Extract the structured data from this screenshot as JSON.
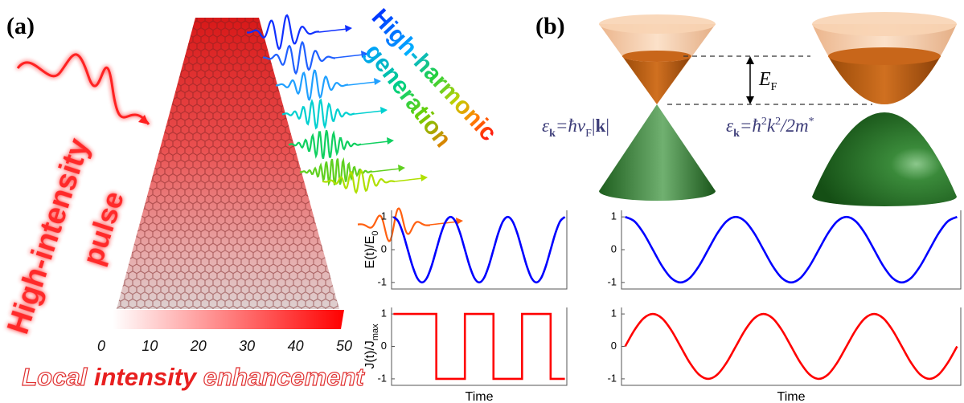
{
  "panel_a": {
    "label": "(a)",
    "pulse_label": [
      "High-intensity",
      "pulse"
    ],
    "hhg_label": [
      "High-harmonic",
      "generation"
    ],
    "colorbar": {
      "lim": [
        0,
        50
      ],
      "ticks": [
        0,
        10,
        20,
        30,
        40,
        50
      ],
      "title": [
        "Local",
        "intensity",
        "enhancement"
      ]
    }
  },
  "panel_b": {
    "label": "(b)",
    "fermi_energy": [
      "E",
      "F"
    ],
    "dirac_dispersion": [
      "ε",
      "k",
      "=ħv",
      "F",
      "|",
      "k",
      "|"
    ],
    "parabolic_dispersion": [
      "ε",
      "k",
      "=ħ",
      "2",
      "k",
      "2",
      "/2m",
      "*"
    ]
  },
  "chart_data": [
    {
      "type": "line",
      "curve": "smooth",
      "ylabel": [
        "E(t)/E",
        "0"
      ],
      "x": [
        0,
        1,
        2,
        3,
        4,
        5,
        6,
        7,
        8,
        9,
        10,
        11,
        12,
        13,
        14,
        15,
        16,
        17,
        18,
        19,
        20,
        21,
        22,
        23,
        24,
        25,
        26,
        27,
        28,
        29,
        30,
        31,
        32,
        33,
        34,
        35,
        36
      ],
      "series": [
        {
          "color": "#0000ff",
          "values": [
            1,
            0.866,
            0.5,
            0,
            -0.5,
            -0.866,
            -1,
            -0.866,
            -0.5,
            0,
            0.5,
            0.866,
            1,
            0.866,
            0.5,
            0,
            -0.5,
            -0.866,
            -1,
            -0.866,
            -0.5,
            0,
            0.5,
            0.866,
            1,
            0.866,
            0.5,
            0,
            -0.5,
            -0.866,
            -1,
            -0.866,
            -0.5,
            0,
            0.5,
            0.866,
            1
          ]
        }
      ],
      "xlim": [
        -0.4,
        36.4
      ],
      "ylim": [
        -1.2,
        1.2
      ],
      "yticks": [
        -1,
        0,
        1
      ]
    },
    {
      "type": "line",
      "curve": "smooth",
      "x": [
        0,
        1,
        2,
        3,
        4,
        5,
        6,
        7,
        8,
        9,
        10,
        11,
        12,
        13,
        14,
        15,
        16,
        17,
        18,
        19,
        20,
        21,
        22,
        23,
        24,
        25,
        26,
        27,
        28,
        29,
        30,
        31,
        32,
        33,
        34,
        35,
        36
      ],
      "series": [
        {
          "color": "#0000ff",
          "values": [
            1,
            0.866,
            0.5,
            0,
            -0.5,
            -0.866,
            -1,
            -0.866,
            -0.5,
            0,
            0.5,
            0.866,
            1,
            0.866,
            0.5,
            0,
            -0.5,
            -0.866,
            -1,
            -0.866,
            -0.5,
            0,
            0.5,
            0.866,
            1,
            0.866,
            0.5,
            0,
            -0.5,
            -0.866,
            -1,
            -0.866,
            -0.5,
            0,
            0.5,
            0.866,
            1
          ]
        }
      ],
      "xlim": [
        -0.4,
        36.4
      ],
      "ylim": [
        -1.2,
        1.2
      ],
      "yticks": [
        -1,
        0,
        1
      ]
    },
    {
      "type": "line",
      "curve": "linear",
      "ylabel": [
        "J(t)/J",
        "max"
      ],
      "xlabel": "Time",
      "x": [
        0,
        9,
        9,
        15,
        15,
        21,
        21,
        27,
        27,
        33,
        33,
        36
      ],
      "series": [
        {
          "color": "#ff0000",
          "values": [
            1,
            1,
            -1,
            -1,
            1,
            1,
            -1,
            -1,
            1,
            1,
            -1,
            -1
          ]
        }
      ],
      "xlim": [
        -0.4,
        36.4
      ],
      "ylim": [
        -1.2,
        1.2
      ],
      "yticks": [
        -1,
        0,
        1
      ]
    },
    {
      "type": "line",
      "curve": "smooth",
      "xlabel": "Time",
      "x": [
        0,
        1,
        2,
        3,
        4,
        5,
        6,
        7,
        8,
        9,
        10,
        11,
        12,
        13,
        14,
        15,
        16,
        17,
        18,
        19,
        20,
        21,
        22,
        23,
        24,
        25,
        26,
        27,
        28,
        29,
        30,
        31,
        32,
        33,
        34,
        35,
        36
      ],
      "series": [
        {
          "color": "#ff0000",
          "values": [
            0,
            0.5,
            0.866,
            1,
            0.866,
            0.5,
            0,
            -0.5,
            -0.866,
            -1,
            -0.866,
            -0.5,
            0,
            0.5,
            0.866,
            1,
            0.866,
            0.5,
            0,
            -0.5,
            -0.866,
            -1,
            -0.866,
            -0.5,
            0,
            0.5,
            0.866,
            1,
            0.866,
            0.5,
            0,
            -0.5,
            -0.866,
            -1,
            -0.866,
            -0.5,
            0
          ]
        }
      ],
      "xlim": [
        -0.4,
        36.4
      ],
      "ylim": [
        -1.2,
        1.2
      ],
      "yticks": [
        -1,
        0,
        1
      ]
    }
  ]
}
